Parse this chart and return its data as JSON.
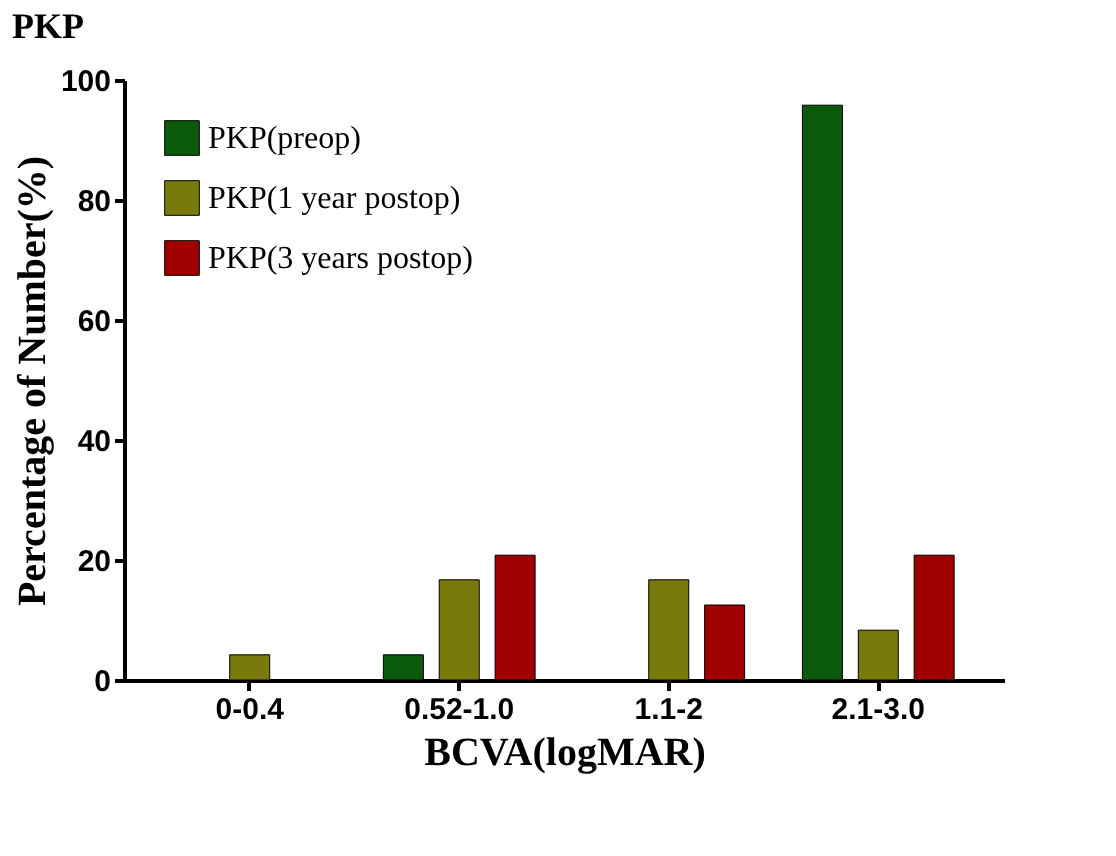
{
  "chart_data": {
    "type": "bar",
    "title": "PKP",
    "xlabel": "BCVA(logMAR)",
    "ylabel": "Percentage of Number(%)",
    "categories": [
      "0-0.4",
      "0.52-1.0",
      "1.1-2",
      "2.1-3.0"
    ],
    "series": [
      {
        "name": "PKP(preop)",
        "color": "#0b5a0b",
        "values": [
          0,
          4.2,
          0,
          95.8
        ]
      },
      {
        "name": "PKP(1 year postop)",
        "color": "#7a7a0c",
        "values": [
          4.2,
          16.7,
          16.7,
          8.3
        ]
      },
      {
        "name": "PKP(3 years postop)",
        "color": "#a00000",
        "values": [
          0,
          20.8,
          12.5,
          20.8
        ]
      }
    ],
    "ylim": [
      0,
      100
    ],
    "yticks": [
      0,
      20,
      40,
      60,
      80,
      100
    ],
    "grid": false,
    "legend": "top left"
  }
}
